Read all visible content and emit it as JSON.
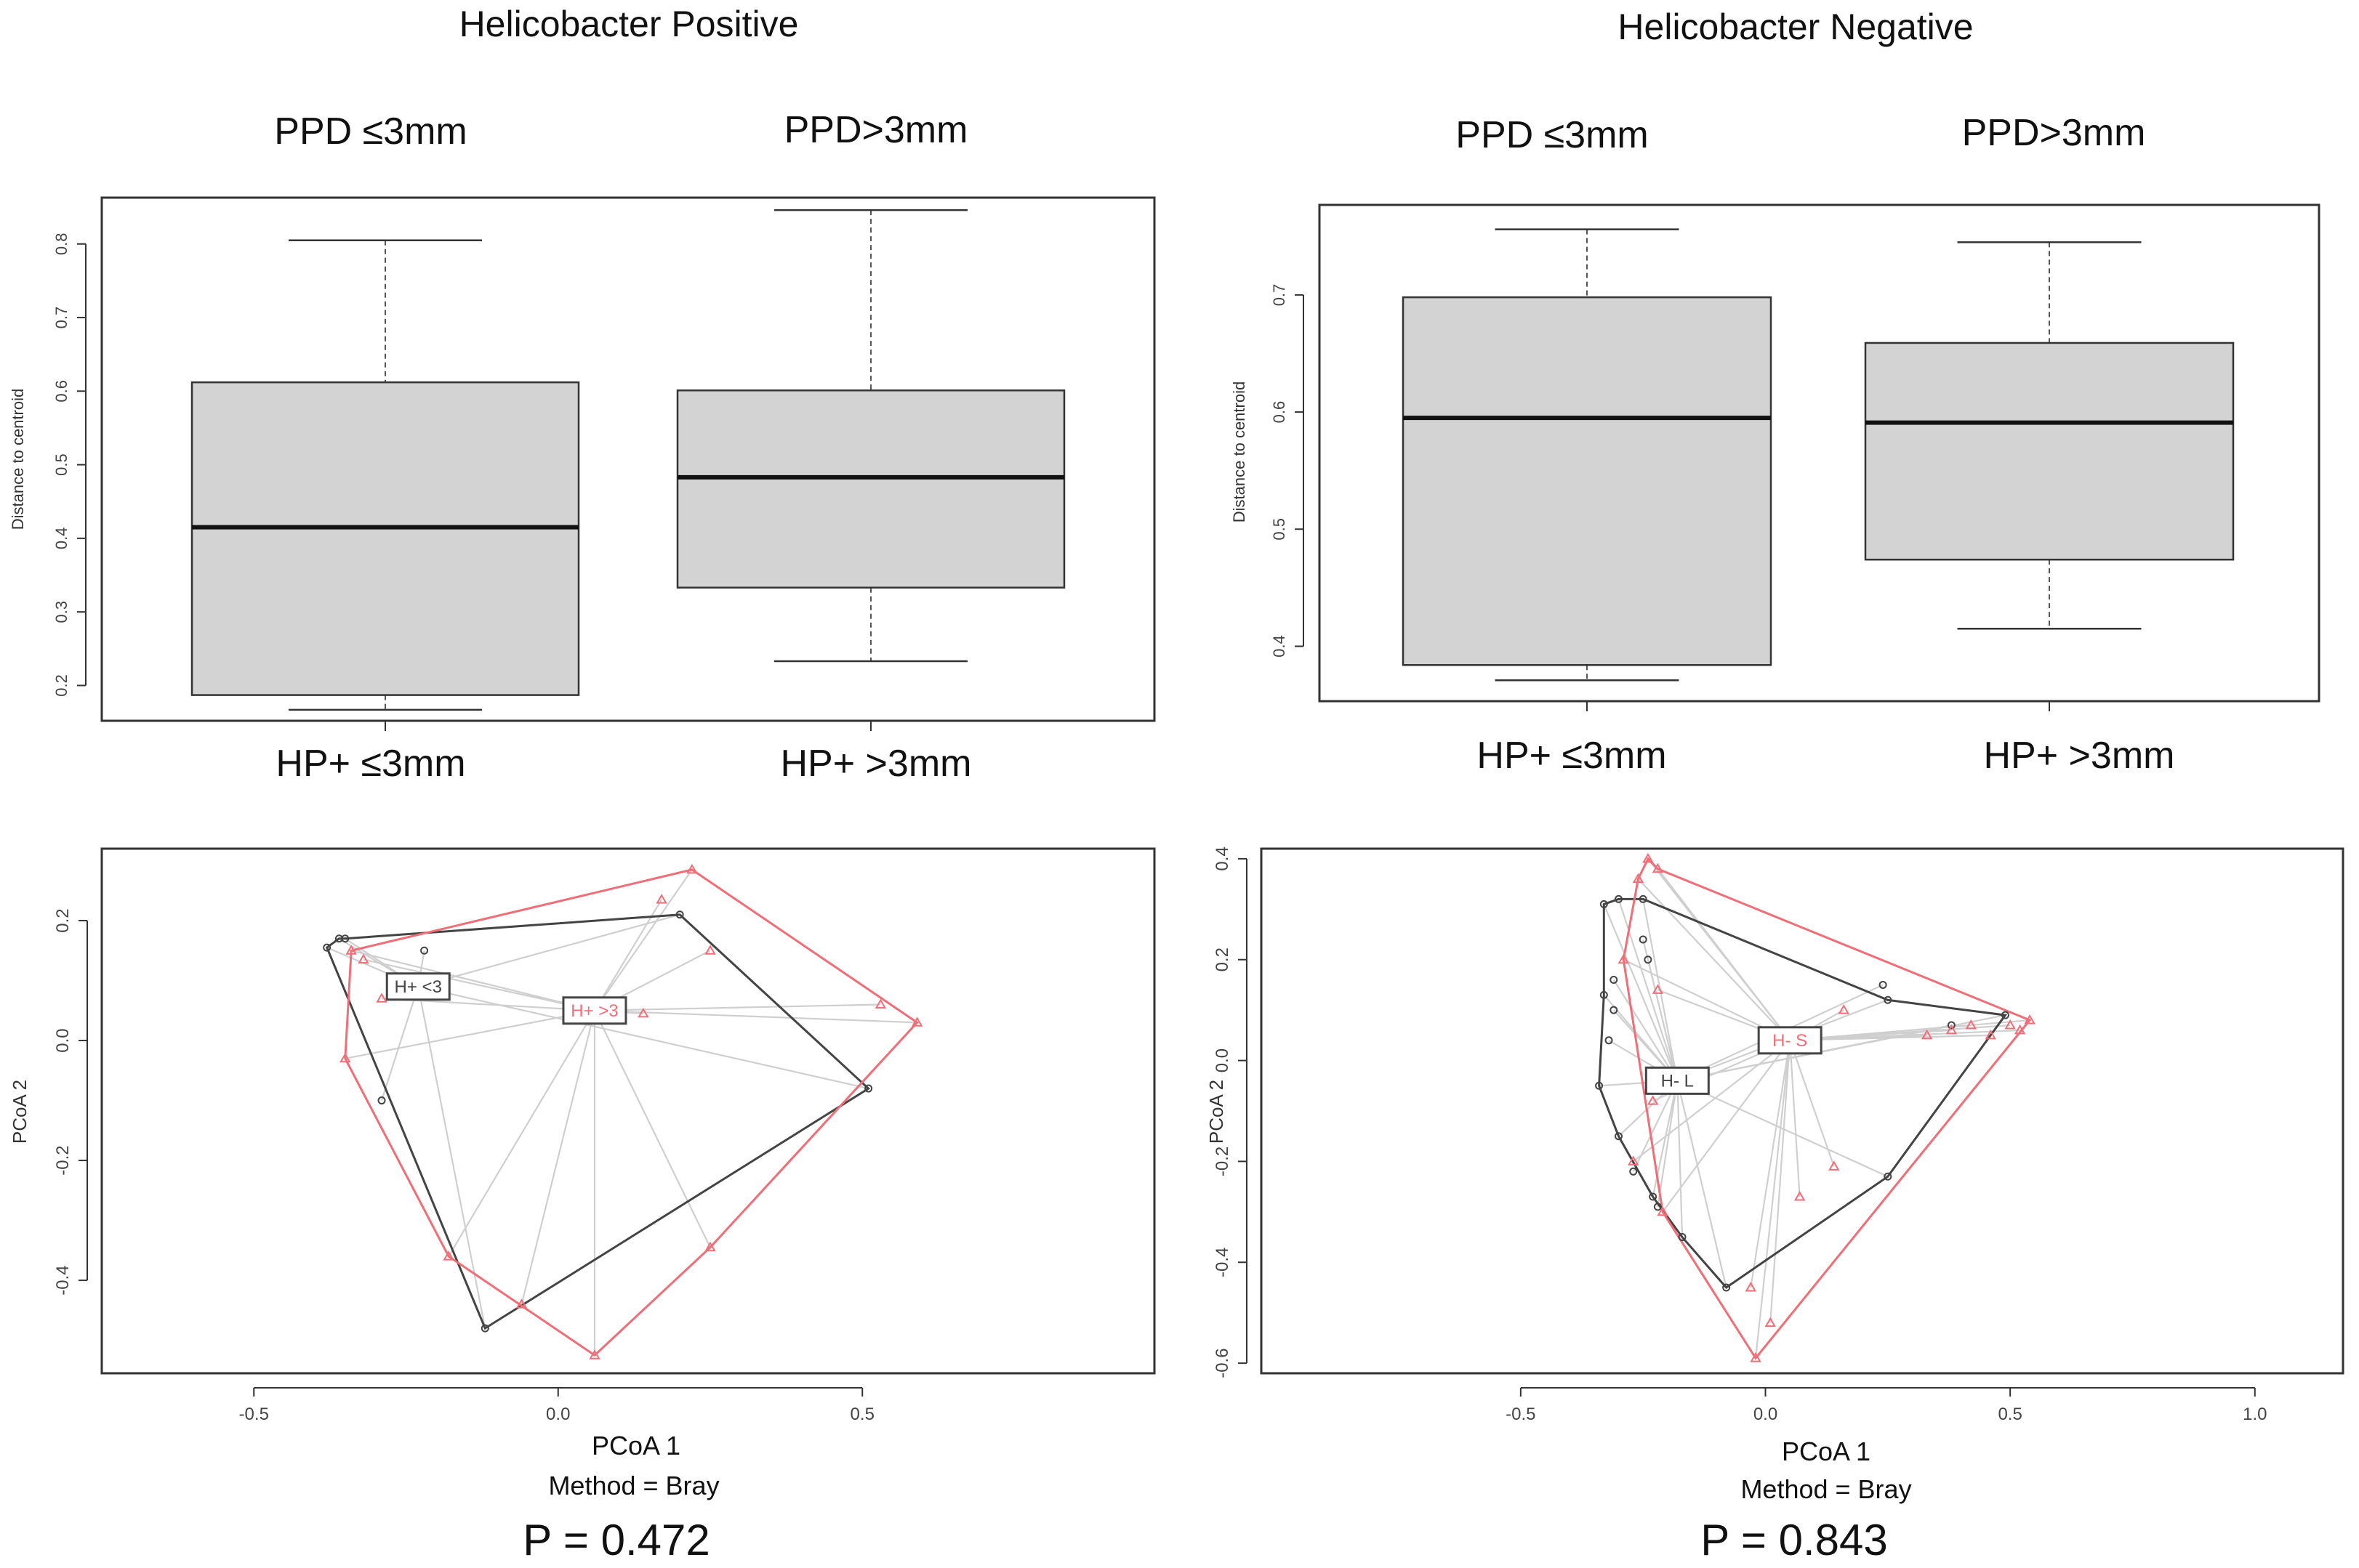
{
  "panels": {
    "hp_title": "Helicobacter Positive",
    "hn_title": "Helicobacter Negative"
  },
  "chart_data": [
    {
      "id": "box_hp",
      "type": "box",
      "header_left": "PPD ≤3mm",
      "header_right": "PPD>3mm",
      "ylabel": "Distance to centroid",
      "ylim": [
        0.155,
        0.86
      ],
      "yticks": [
        "0.2",
        "0.3",
        "0.4",
        "0.5",
        "0.6",
        "0.7",
        "0.8"
      ],
      "categories": [
        "HP+ ≤3mm",
        "HP+ >3mm"
      ],
      "boxes": [
        {
          "min": 0.167,
          "q1": 0.187,
          "median": 0.415,
          "q3": 0.612,
          "max": 0.805
        },
        {
          "min": 0.233,
          "q1": 0.333,
          "median": 0.483,
          "q3": 0.601,
          "max": 0.846
        }
      ]
    },
    {
      "id": "box_hn",
      "type": "box",
      "header_left": "PPD ≤3mm",
      "header_right": "PPD>3mm",
      "ylabel": "Distance to centroid",
      "ylim": [
        0.355,
        0.775
      ],
      "yticks": [
        "0.4",
        "0.5",
        "0.6",
        "0.7"
      ],
      "categories": [
        "HP+ ≤3mm",
        "HP+ >3mm"
      ],
      "boxes": [
        {
          "min": 0.371,
          "q1": 0.384,
          "median": 0.595,
          "q3": 0.698,
          "max": 0.756
        },
        {
          "min": 0.415,
          "q1": 0.474,
          "median": 0.591,
          "q3": 0.659,
          "max": 0.745
        }
      ]
    },
    {
      "id": "pcoa_hp",
      "type": "scatter",
      "xlabel": "PCoA 1",
      "ylabel": "PCoA 2",
      "method": "Method = Bray",
      "p_value": "P = 0.472",
      "xlim": [
        -0.75,
        0.98
      ],
      "ylim": [
        -0.555,
        0.32
      ],
      "xticks": [
        "-0.5",
        "0.0",
        "0.5"
      ],
      "yticks": [
        "-0.4",
        "-0.2",
        "0.0",
        "0.2"
      ],
      "series": [
        {
          "name": "H+ <3",
          "color": "#444444",
          "centroid": {
            "x": -0.23,
            "y": 0.09
          },
          "points": [
            {
              "x": -0.38,
              "y": 0.155
            },
            {
              "x": -0.36,
              "y": 0.17
            },
            {
              "x": -0.35,
              "y": 0.17
            },
            {
              "x": -0.29,
              "y": -0.1
            },
            {
              "x": -0.22,
              "y": 0.15
            },
            {
              "x": -0.12,
              "y": -0.48
            },
            {
              "x": 0.2,
              "y": 0.21
            },
            {
              "x": 0.51,
              "y": -0.08
            }
          ],
          "hull": [
            {
              "x": -0.38,
              "y": 0.155
            },
            {
              "x": -0.36,
              "y": 0.17
            },
            {
              "x": -0.35,
              "y": 0.17
            },
            {
              "x": 0.2,
              "y": 0.21
            },
            {
              "x": 0.51,
              "y": -0.08
            },
            {
              "x": -0.12,
              "y": -0.48
            }
          ]
        },
        {
          "name": "H+ >3",
          "color": "#f06e77",
          "centroid": {
            "x": 0.06,
            "y": 0.05
          },
          "points": [
            {
              "x": -0.34,
              "y": 0.15
            },
            {
              "x": -0.32,
              "y": 0.135
            },
            {
              "x": -0.35,
              "y": -0.03
            },
            {
              "x": -0.29,
              "y": 0.07
            },
            {
              "x": -0.18,
              "y": -0.36
            },
            {
              "x": -0.06,
              "y": -0.44
            },
            {
              "x": 0.06,
              "y": -0.525
            },
            {
              "x": 0.17,
              "y": 0.235
            },
            {
              "x": 0.22,
              "y": 0.285
            },
            {
              "x": 0.25,
              "y": 0.15
            },
            {
              "x": 0.25,
              "y": -0.345
            },
            {
              "x": 0.53,
              "y": 0.06
            },
            {
              "x": 0.59,
              "y": 0.03
            },
            {
              "x": 0.14,
              "y": 0.045
            }
          ],
          "hull": [
            {
              "x": -0.34,
              "y": 0.15
            },
            {
              "x": 0.22,
              "y": 0.285
            },
            {
              "x": 0.59,
              "y": 0.03
            },
            {
              "x": 0.25,
              "y": -0.345
            },
            {
              "x": 0.06,
              "y": -0.525
            },
            {
              "x": -0.18,
              "y": -0.36
            },
            {
              "x": -0.35,
              "y": -0.03
            }
          ]
        }
      ]
    },
    {
      "id": "pcoa_hn",
      "type": "scatter",
      "xlabel": "PCoA 1",
      "ylabel": "PCoA 2",
      "method": "Method = Bray",
      "p_value": "P = 0.843",
      "xlim": [
        -1.03,
        1.18
      ],
      "ylim": [
        -0.62,
        0.42
      ],
      "xticks": [
        "-0.5",
        "0.0",
        "0.5",
        "1.0"
      ],
      "yticks": [
        "-0.6",
        "-0.4",
        "-0.2",
        "0.0",
        "0.2",
        "0.4"
      ],
      "series": [
        {
          "name": "H- L",
          "color": "#444444",
          "centroid": {
            "x": -0.18,
            "y": -0.04
          },
          "points": [
            {
              "x": -0.33,
              "y": 0.31
            },
            {
              "x": -0.3,
              "y": 0.32
            },
            {
              "x": -0.25,
              "y": 0.32
            },
            {
              "x": -0.33,
              "y": 0.13
            },
            {
              "x": -0.25,
              "y": 0.24
            },
            {
              "x": -0.24,
              "y": 0.2
            },
            {
              "x": -0.31,
              "y": 0.16
            },
            {
              "x": -0.31,
              "y": 0.1
            },
            {
              "x": -0.32,
              "y": 0.04
            },
            {
              "x": -0.34,
              "y": -0.05
            },
            {
              "x": -0.3,
              "y": -0.15
            },
            {
              "x": -0.27,
              "y": -0.22
            },
            {
              "x": -0.23,
              "y": -0.27
            },
            {
              "x": -0.22,
              "y": -0.29
            },
            {
              "x": -0.17,
              "y": -0.35
            },
            {
              "x": -0.08,
              "y": -0.45
            },
            {
              "x": 0.25,
              "y": -0.23
            },
            {
              "x": 0.49,
              "y": 0.09
            },
            {
              "x": 0.24,
              "y": 0.15
            },
            {
              "x": 0.25,
              "y": 0.12
            },
            {
              "x": 0.38,
              "y": 0.07
            }
          ],
          "hull": [
            {
              "x": -0.33,
              "y": 0.31
            },
            {
              "x": -0.3,
              "y": 0.32
            },
            {
              "x": -0.25,
              "y": 0.32
            },
            {
              "x": 0.25,
              "y": 0.12
            },
            {
              "x": 0.49,
              "y": 0.09
            },
            {
              "x": 0.25,
              "y": -0.23
            },
            {
              "x": -0.08,
              "y": -0.45
            },
            {
              "x": -0.17,
              "y": -0.35
            },
            {
              "x": -0.23,
              "y": -0.27
            },
            {
              "x": -0.3,
              "y": -0.15
            },
            {
              "x": -0.34,
              "y": -0.05
            },
            {
              "x": -0.33,
              "y": 0.13
            }
          ]
        },
        {
          "name": "H- S",
          "color": "#f06e77",
          "centroid": {
            "x": 0.05,
            "y": 0.04
          },
          "points": [
            {
              "x": -0.24,
              "y": 0.4
            },
            {
              "x": -0.22,
              "y": 0.38
            },
            {
              "x": -0.26,
              "y": 0.36
            },
            {
              "x": -0.29,
              "y": 0.2
            },
            {
              "x": -0.22,
              "y": 0.14
            },
            {
              "x": -0.23,
              "y": -0.08
            },
            {
              "x": -0.27,
              "y": -0.2
            },
            {
              "x": -0.21,
              "y": -0.3
            },
            {
              "x": -0.03,
              "y": -0.45
            },
            {
              "x": -0.02,
              "y": -0.59
            },
            {
              "x": 0.01,
              "y": -0.52
            },
            {
              "x": 0.07,
              "y": -0.27
            },
            {
              "x": 0.14,
              "y": -0.21
            },
            {
              "x": 0.16,
              "y": 0.1
            },
            {
              "x": 0.33,
              "y": 0.05
            },
            {
              "x": 0.38,
              "y": 0.06
            },
            {
              "x": 0.42,
              "y": 0.07
            },
            {
              "x": 0.46,
              "y": 0.05
            },
            {
              "x": 0.5,
              "y": 0.07
            },
            {
              "x": 0.52,
              "y": 0.06
            },
            {
              "x": 0.54,
              "y": 0.08
            }
          ],
          "hull": [
            {
              "x": -0.24,
              "y": 0.4
            },
            {
              "x": -0.22,
              "y": 0.38
            },
            {
              "x": 0.54,
              "y": 0.08
            },
            {
              "x": -0.02,
              "y": -0.59
            },
            {
              "x": -0.21,
              "y": -0.3
            },
            {
              "x": -0.29,
              "y": 0.2
            },
            {
              "x": -0.26,
              "y": 0.36
            }
          ]
        }
      ]
    }
  ]
}
